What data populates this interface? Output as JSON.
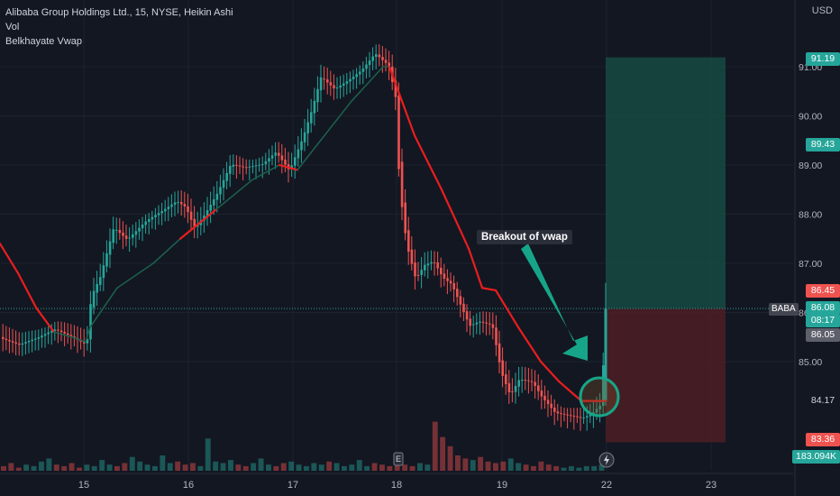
{
  "legend": {
    "title": "Alibaba Group Holdings Ltd., 15, NYSE, Heikin Ashi",
    "vol": "Vol",
    "indicator": "Belkhayate Vwap"
  },
  "currency": "USD",
  "annotation": "Breakout of vwap",
  "price_tags": {
    "target": "91.19",
    "target_pct": "89.43",
    "entry_high": "86.45",
    "symbol": "BABA",
    "last": "86.08",
    "countdown": "08:17",
    "prev_close": "86.05",
    "vwap": "84.17",
    "stop": "83.36",
    "volume": "183.094K"
  },
  "colors": {
    "up": "#26a69a",
    "down": "#ef5350",
    "vwap_down": "#e91e1e",
    "vwap_up": "#1b5e4b",
    "target_zone": "#184a42",
    "stop_zone": "#4d1f25",
    "background": "#131722"
  },
  "chart_data": {
    "type": "candlestick",
    "title": "Alibaba Group Holdings Ltd., 15, NYSE, Heikin Ashi",
    "ylabel": "USD",
    "ylim": [
      83.0,
      91.8
    ],
    "y_ticks": [
      "85.00",
      "86.00",
      "87.00",
      "88.00",
      "89.00",
      "90.00",
      "91.00"
    ],
    "x_ticks": [
      "15",
      "16",
      "17",
      "18",
      "19",
      "22",
      "23"
    ],
    "price_path": [
      [
        0,
        85.5
      ],
      [
        20,
        85.3
      ],
      [
        40,
        85.4
      ],
      [
        60,
        85.6
      ],
      [
        80,
        85.5
      ],
      [
        95,
        85.4
      ],
      [
        100,
        86.4
      ],
      [
        110,
        86.8
      ],
      [
        125,
        87.8
      ],
      [
        140,
        87.5
      ],
      [
        160,
        87.8
      ],
      [
        180,
        88.0
      ],
      [
        195,
        88.2
      ],
      [
        205,
        88.1
      ],
      [
        215,
        87.7
      ],
      [
        225,
        88.0
      ],
      [
        240,
        88.5
      ],
      [
        255,
        89.1
      ],
      [
        270,
        89.0
      ],
      [
        290,
        89.0
      ],
      [
        305,
        89.2
      ],
      [
        320,
        88.8
      ],
      [
        335,
        89.5
      ],
      [
        345,
        90.1
      ],
      [
        355,
        90.8
      ],
      [
        370,
        90.6
      ],
      [
        385,
        90.8
      ],
      [
        400,
        91.0
      ],
      [
        415,
        91.3
      ],
      [
        430,
        91.0
      ],
      [
        438,
        90.3
      ],
      [
        442,
        88.5
      ],
      [
        450,
        87.3
      ],
      [
        460,
        86.6
      ],
      [
        470,
        86.9
      ],
      [
        480,
        87.0
      ],
      [
        490,
        86.7
      ],
      [
        500,
        86.6
      ],
      [
        510,
        86.2
      ],
      [
        520,
        85.8
      ],
      [
        530,
        85.9
      ],
      [
        545,
        85.8
      ],
      [
        555,
        84.8
      ],
      [
        565,
        84.3
      ],
      [
        575,
        84.6
      ],
      [
        590,
        84.5
      ],
      [
        600,
        84.2
      ],
      [
        615,
        83.9
      ],
      [
        630,
        83.9
      ],
      [
        645,
        83.9
      ],
      [
        655,
        84.0
      ],
      [
        665,
        84.2
      ],
      [
        672,
        86.08
      ]
    ],
    "vwap_path": [
      [
        0,
        87.4
      ],
      [
        20,
        86.8
      ],
      [
        40,
        86.1
      ],
      [
        60,
        85.6
      ],
      [
        80,
        85.5
      ],
      [
        95,
        85.4
      ],
      [
        100,
        85.7
      ],
      [
        130,
        86.5
      ],
      [
        170,
        87.0
      ],
      [
        200,
        87.5
      ],
      [
        240,
        88.1
      ],
      [
        280,
        88.7
      ],
      [
        310,
        89.0
      ],
      [
        330,
        88.9
      ],
      [
        360,
        89.6
      ],
      [
        390,
        90.3
      ],
      [
        425,
        91.0
      ],
      [
        432,
        91.0
      ],
      [
        460,
        89.6
      ],
      [
        490,
        88.5
      ],
      [
        520,
        87.3
      ],
      [
        535,
        86.5
      ],
      [
        550,
        86.45
      ],
      [
        575,
        85.7
      ],
      [
        600,
        85.0
      ],
      [
        620,
        84.6
      ],
      [
        645,
        84.2
      ],
      [
        672,
        84.2
      ]
    ],
    "volume_levels": [
      0.3,
      0.5,
      0.2,
      0.4,
      0.3,
      0.6,
      0.8,
      0.4,
      0.3,
      0.5,
      0.2,
      0.4,
      0.3,
      0.7,
      0.4,
      0.3,
      0.5,
      0.9,
      0.6,
      0.4,
      0.3,
      1.0,
      0.5,
      0.6,
      0.4,
      0.5,
      0.3,
      2.1,
      0.6,
      0.5,
      0.7,
      0.4,
      0.3,
      0.5,
      0.8,
      0.4,
      0.3,
      0.5,
      0.6,
      0.4,
      0.3,
      0.5,
      0.4,
      0.6,
      0.5,
      0.3,
      0.4,
      0.7,
      0.3,
      0.5,
      0.4,
      0.3,
      0.6,
      0.4,
      0.3,
      0.5,
      0.4,
      3.2,
      2.2,
      1.6,
      1.0,
      0.8,
      0.7,
      0.9,
      0.6,
      0.5,
      0.6,
      0.8,
      0.5,
      0.4,
      0.3,
      0.6,
      0.4,
      0.3,
      0.2,
      0.3,
      0.2,
      0.3,
      0.3,
      0.4
    ],
    "position": {
      "target": 91.19,
      "entry": 86.08,
      "stop": 83.36
    }
  }
}
